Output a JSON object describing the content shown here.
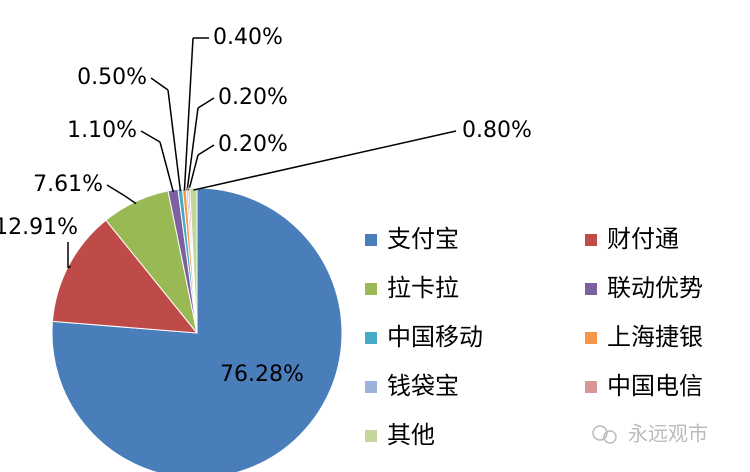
{
  "chart_data": {
    "type": "pie",
    "categories": [
      "支付宝",
      "财付通",
      "拉卡拉",
      "联动优势",
      "中国移动",
      "上海捷银",
      "钱袋宝",
      "中国电信",
      "其他"
    ],
    "values": [
      76.28,
      12.91,
      7.61,
      1.1,
      0.5,
      0.4,
      0.2,
      0.2,
      0.8
    ],
    "value_labels": [
      "76.28%",
      "12.91%",
      "7.61%",
      "1.10%",
      "0.50%",
      "0.40%",
      "0.20%",
      "0.20%",
      "0.80%"
    ],
    "colors": [
      "#4a7ebb",
      "#be4b48",
      "#98b954",
      "#7d60a0",
      "#46aac5",
      "#f79646",
      "#9bb1d9",
      "#d99694",
      "#c3d69b"
    ],
    "legend": "right"
  },
  "watermark": "永远观市"
}
